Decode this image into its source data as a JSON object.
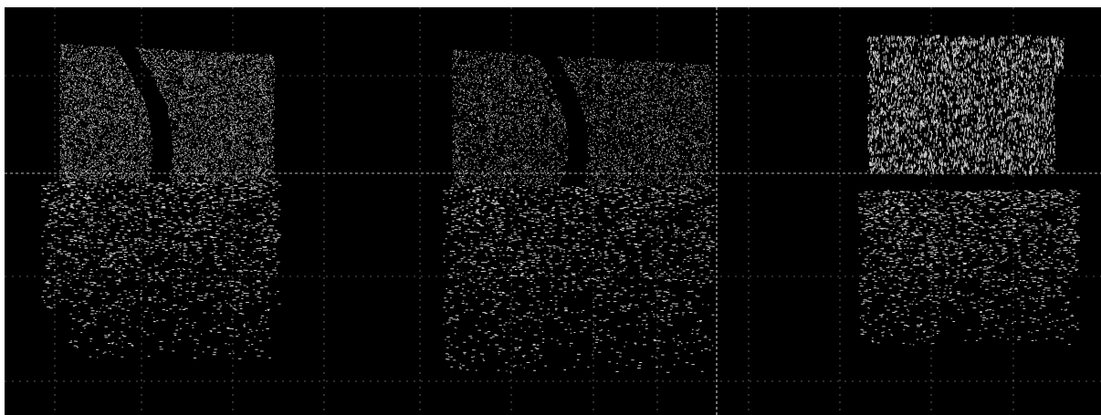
{
  "scene": {
    "description_tag": "point-cloud-triptych",
    "background_color": "#000000",
    "point_color": "#ffffff",
    "grid_color": "#d9d9d9",
    "border_color": "#ffffff",
    "panels": [
      {
        "id": "view-left",
        "label": ""
      },
      {
        "id": "view-middle",
        "label": ""
      },
      {
        "id": "view-right",
        "label": ""
      }
    ]
  }
}
